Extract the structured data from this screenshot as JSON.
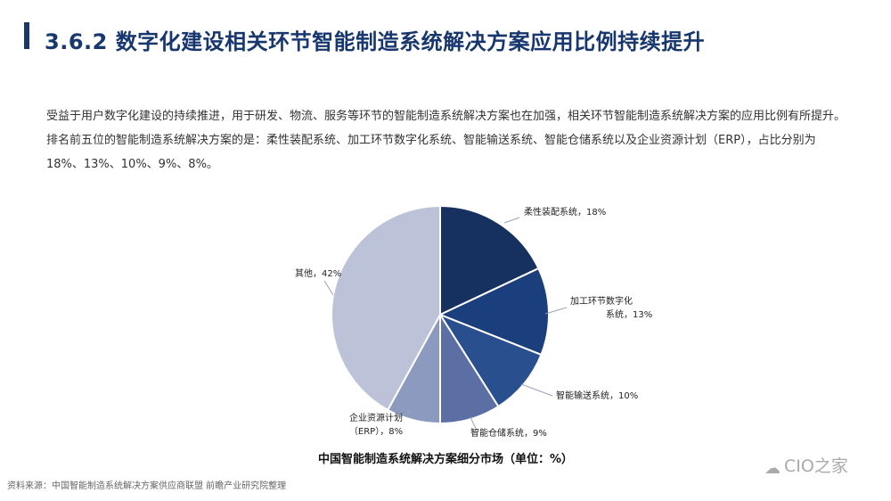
{
  "header": {
    "title": "3.6.2 数字化建设相关环节智能制造系统解决方案应用比例持续提升"
  },
  "intro_text": "受益于用户数字化建设的持续推进，用于研发、物流、服务等环节的智能制造系统解决方案也在加强，相关环节智能制造系统解决方案的应用比例有所提升。排名前五位的智能制造系统解决方案的是：柔性装配系统、加工环节数字化系统、智能输送系统、智能仓储系统以及企业资源计划（ERP），占比分别为18%、13%、10%、9%、8%。",
  "chart_data": {
    "type": "pie",
    "title": "中国智能制造系统解决方案细分市场（单位：%）",
    "unit": "%",
    "slices": [
      {
        "label": "柔性装配系统",
        "value": 18,
        "color": "#16305f"
      },
      {
        "label": "加工环节数字化系统",
        "value": 13,
        "color": "#1b3e7c"
      },
      {
        "label": "智能输送系统",
        "value": 10,
        "color": "#2a4f8f"
      },
      {
        "label": "智能仓储系统",
        "value": 9,
        "color": "#5b6fa5"
      },
      {
        "label": "企业资源计划（ERP）",
        "value": 8,
        "color": "#8c9ac0"
      },
      {
        "label": "其他",
        "value": 42,
        "color": "#bcc3d8"
      }
    ],
    "data_labels": [
      "柔性装配系统，18%",
      "加工环节数字化系统，13%",
      "智能输送系统，10%",
      "智能仓储系统，9%",
      "企业资源计划（ERP），8%",
      "其他，42%"
    ],
    "legend": "none"
  },
  "source": "资料来源：中国智能制造系统解决方案供应商联盟 前瞻产业研究院整理",
  "watermark": {
    "icon": "wechat-icon",
    "text": "CIO之家"
  }
}
